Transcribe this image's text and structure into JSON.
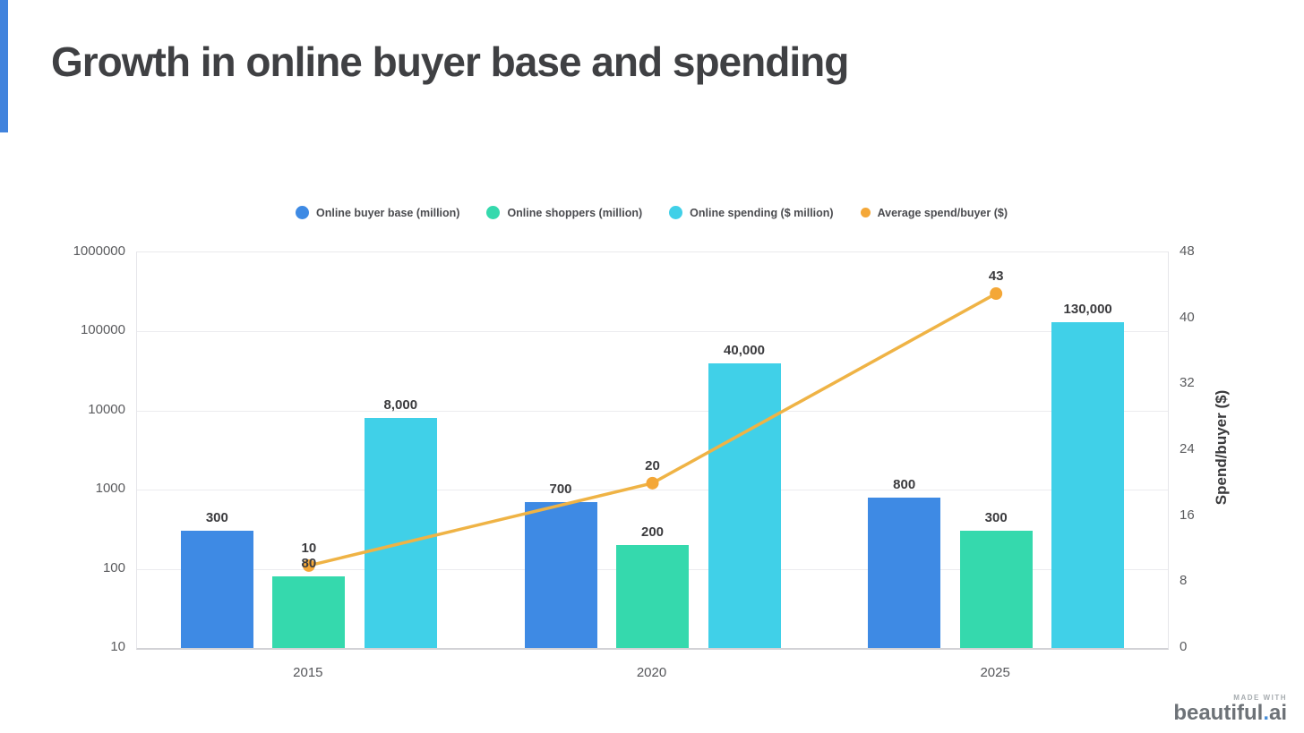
{
  "title": "Growth in online buyer base and spending",
  "branding": {
    "made_with": "MADE WITH",
    "logo_prefix": "beautiful",
    "logo_dot": ".",
    "logo_suffix": "ai"
  },
  "colors": {
    "accent_bar": "#4183dd",
    "title_text": "#3f4043",
    "buyer_base_bar": "#3e8ae4",
    "shoppers_bar": "#35d9ad",
    "spending_bar": "#40d0e8",
    "spend_line": "#efb345",
    "spend_marker": "#f4a737",
    "gridline": "#ececef",
    "tick_text": "#5a5b5e",
    "data_label_text": "#3b3b3e"
  },
  "chart_data": {
    "type": "bar",
    "subtype": "combo-bar-line-log",
    "categories": [
      "2015",
      "2020",
      "2025"
    ],
    "series": [
      {
        "name": "Online buyer base (million)",
        "kind": "bar",
        "axis": "left",
        "color": "#3e8ae4",
        "values": [
          300,
          700,
          800
        ],
        "labels": [
          "300",
          "700",
          "800"
        ]
      },
      {
        "name": "Online shoppers (million)",
        "kind": "bar",
        "axis": "left",
        "color": "#35d9ad",
        "values": [
          80,
          200,
          300
        ],
        "labels": [
          "80",
          "200",
          "300"
        ]
      },
      {
        "name": "Online spending ($ million)",
        "kind": "bar",
        "axis": "left",
        "color": "#40d0e8",
        "values": [
          8000,
          40000,
          130000
        ],
        "labels": [
          "8,000",
          "40,000",
          "130,000"
        ]
      },
      {
        "name": "Average spend/buyer ($)",
        "kind": "line",
        "axis": "right",
        "color": "#efb345",
        "marker_color": "#f4a737",
        "values": [
          10,
          20,
          43
        ],
        "labels": [
          "10",
          "20",
          "43"
        ]
      }
    ],
    "left_axis": {
      "scale": "log",
      "min": 10,
      "max": 1000000,
      "ticks": [
        "1000000",
        "100000",
        "10000",
        "1000",
        "100",
        "10"
      ]
    },
    "right_axis": {
      "title": "Spend/buyer ($)",
      "min": 0,
      "max": 48,
      "ticks": [
        "48",
        "40",
        "32",
        "24",
        "16",
        "8",
        "0"
      ]
    },
    "grid": true,
    "legend_position": "top",
    "xlabel": "",
    "ylabel": ""
  }
}
